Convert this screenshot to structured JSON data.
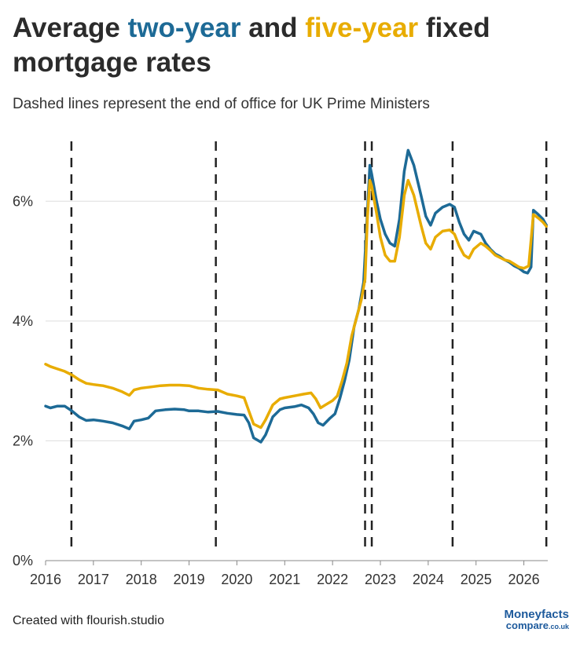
{
  "header": {
    "title_part1": "Average ",
    "title_two": "two-year",
    "title_mid": " and ",
    "title_five": "five-year",
    "title_part2": " fixed mortgage rates",
    "subtitle": "Dashed lines represent the end of office for UK Prime Ministers"
  },
  "footer": {
    "credit": "Created with flourish.studio",
    "logo_line1": "Moneyfacts",
    "logo_line2": "compare",
    "logo_suffix": ".co.uk"
  },
  "colors": {
    "two_year": "#1d6a96",
    "five_year": "#e8ac00",
    "gridline": "#dddddd",
    "dashed": "#222222"
  },
  "chart_data": {
    "type": "line",
    "title": "Average two-year and five-year fixed mortgage rates",
    "xlabel": "",
    "ylabel": "",
    "xlim": [
      2016.0,
      2026.5
    ],
    "ylim": [
      0,
      7
    ],
    "x_ticks": [
      "2016",
      "2017",
      "2018",
      "2019",
      "2020",
      "2021",
      "2022",
      "2023",
      "2024",
      "2025",
      "2026"
    ],
    "y_ticks": [
      "0%",
      "2%",
      "4%",
      "6%"
    ],
    "grid": "horizontal",
    "vlines": [
      2016.54,
      2019.56,
      2022.68,
      2022.82,
      2024.51,
      2026.47
    ],
    "series": [
      {
        "name": "two-year",
        "color": "#1d6a96",
        "points": [
          [
            2016.0,
            2.58
          ],
          [
            2016.1,
            2.55
          ],
          [
            2016.25,
            2.58
          ],
          [
            2016.4,
            2.58
          ],
          [
            2016.55,
            2.5
          ],
          [
            2016.7,
            2.4
          ],
          [
            2016.85,
            2.34
          ],
          [
            2017.0,
            2.35
          ],
          [
            2017.2,
            2.33
          ],
          [
            2017.4,
            2.3
          ],
          [
            2017.6,
            2.25
          ],
          [
            2017.75,
            2.2
          ],
          [
            2017.85,
            2.33
          ],
          [
            2018.0,
            2.35
          ],
          [
            2018.15,
            2.38
          ],
          [
            2018.3,
            2.5
          ],
          [
            2018.5,
            2.52
          ],
          [
            2018.7,
            2.53
          ],
          [
            2018.9,
            2.52
          ],
          [
            2019.0,
            2.5
          ],
          [
            2019.2,
            2.5
          ],
          [
            2019.4,
            2.48
          ],
          [
            2019.6,
            2.49
          ],
          [
            2019.8,
            2.46
          ],
          [
            2020.0,
            2.44
          ],
          [
            2020.15,
            2.43
          ],
          [
            2020.25,
            2.3
          ],
          [
            2020.35,
            2.05
          ],
          [
            2020.5,
            1.98
          ],
          [
            2020.6,
            2.1
          ],
          [
            2020.75,
            2.4
          ],
          [
            2020.9,
            2.52
          ],
          [
            2021.0,
            2.55
          ],
          [
            2021.2,
            2.57
          ],
          [
            2021.35,
            2.6
          ],
          [
            2021.5,
            2.55
          ],
          [
            2021.6,
            2.45
          ],
          [
            2021.7,
            2.3
          ],
          [
            2021.8,
            2.26
          ],
          [
            2021.95,
            2.38
          ],
          [
            2022.05,
            2.45
          ],
          [
            2022.15,
            2.7
          ],
          [
            2022.25,
            3.0
          ],
          [
            2022.35,
            3.35
          ],
          [
            2022.45,
            3.9
          ],
          [
            2022.55,
            4.2
          ],
          [
            2022.65,
            4.65
          ],
          [
            2022.72,
            5.7
          ],
          [
            2022.78,
            6.6
          ],
          [
            2022.82,
            6.45
          ],
          [
            2022.92,
            6.0
          ],
          [
            2023.0,
            5.7
          ],
          [
            2023.1,
            5.45
          ],
          [
            2023.2,
            5.3
          ],
          [
            2023.3,
            5.25
          ],
          [
            2023.4,
            5.7
          ],
          [
            2023.5,
            6.5
          ],
          [
            2023.58,
            6.85
          ],
          [
            2023.7,
            6.6
          ],
          [
            2023.85,
            6.1
          ],
          [
            2023.95,
            5.75
          ],
          [
            2024.05,
            5.6
          ],
          [
            2024.15,
            5.8
          ],
          [
            2024.3,
            5.9
          ],
          [
            2024.45,
            5.95
          ],
          [
            2024.55,
            5.9
          ],
          [
            2024.65,
            5.65
          ],
          [
            2024.75,
            5.45
          ],
          [
            2024.85,
            5.35
          ],
          [
            2024.95,
            5.5
          ],
          [
            2025.1,
            5.45
          ],
          [
            2025.2,
            5.3
          ],
          [
            2025.3,
            5.2
          ],
          [
            2025.4,
            5.12
          ],
          [
            2025.5,
            5.08
          ],
          [
            2025.6,
            5.02
          ],
          [
            2025.7,
            4.98
          ],
          [
            2025.8,
            4.92
          ],
          [
            2025.9,
            4.88
          ],
          [
            2026.0,
            4.82
          ],
          [
            2026.08,
            4.8
          ],
          [
            2026.15,
            4.9
          ],
          [
            2026.2,
            5.85
          ],
          [
            2026.3,
            5.78
          ],
          [
            2026.4,
            5.7
          ],
          [
            2026.47,
            5.6
          ]
        ]
      },
      {
        "name": "five-year",
        "color": "#e8ac00",
        "points": [
          [
            2016.0,
            3.28
          ],
          [
            2016.1,
            3.24
          ],
          [
            2016.25,
            3.2
          ],
          [
            2016.4,
            3.16
          ],
          [
            2016.55,
            3.1
          ],
          [
            2016.7,
            3.02
          ],
          [
            2016.85,
            2.96
          ],
          [
            2017.0,
            2.94
          ],
          [
            2017.2,
            2.92
          ],
          [
            2017.4,
            2.88
          ],
          [
            2017.6,
            2.82
          ],
          [
            2017.75,
            2.76
          ],
          [
            2017.85,
            2.85
          ],
          [
            2018.0,
            2.88
          ],
          [
            2018.2,
            2.9
          ],
          [
            2018.4,
            2.92
          ],
          [
            2018.6,
            2.93
          ],
          [
            2018.8,
            2.93
          ],
          [
            2019.0,
            2.92
          ],
          [
            2019.2,
            2.88
          ],
          [
            2019.4,
            2.86
          ],
          [
            2019.6,
            2.85
          ],
          [
            2019.8,
            2.78
          ],
          [
            2020.0,
            2.75
          ],
          [
            2020.15,
            2.72
          ],
          [
            2020.25,
            2.5
          ],
          [
            2020.35,
            2.28
          ],
          [
            2020.5,
            2.22
          ],
          [
            2020.6,
            2.35
          ],
          [
            2020.75,
            2.6
          ],
          [
            2020.9,
            2.7
          ],
          [
            2021.0,
            2.72
          ],
          [
            2021.2,
            2.75
          ],
          [
            2021.4,
            2.78
          ],
          [
            2021.55,
            2.8
          ],
          [
            2021.65,
            2.7
          ],
          [
            2021.75,
            2.55
          ],
          [
            2021.85,
            2.6
          ],
          [
            2022.0,
            2.67
          ],
          [
            2022.1,
            2.75
          ],
          [
            2022.2,
            3.0
          ],
          [
            2022.3,
            3.3
          ],
          [
            2022.4,
            3.75
          ],
          [
            2022.5,
            4.05
          ],
          [
            2022.6,
            4.35
          ],
          [
            2022.68,
            4.7
          ],
          [
            2022.73,
            5.75
          ],
          [
            2022.78,
            6.35
          ],
          [
            2022.82,
            6.25
          ],
          [
            2022.92,
            5.8
          ],
          [
            2023.0,
            5.4
          ],
          [
            2023.1,
            5.1
          ],
          [
            2023.2,
            5.0
          ],
          [
            2023.3,
            5.0
          ],
          [
            2023.4,
            5.4
          ],
          [
            2023.5,
            6.1
          ],
          [
            2023.58,
            6.35
          ],
          [
            2023.7,
            6.1
          ],
          [
            2023.85,
            5.6
          ],
          [
            2023.95,
            5.3
          ],
          [
            2024.05,
            5.2
          ],
          [
            2024.15,
            5.4
          ],
          [
            2024.3,
            5.5
          ],
          [
            2024.45,
            5.52
          ],
          [
            2024.55,
            5.45
          ],
          [
            2024.65,
            5.25
          ],
          [
            2024.75,
            5.1
          ],
          [
            2024.85,
            5.05
          ],
          [
            2024.95,
            5.2
          ],
          [
            2025.1,
            5.3
          ],
          [
            2025.2,
            5.25
          ],
          [
            2025.3,
            5.18
          ],
          [
            2025.4,
            5.1
          ],
          [
            2025.5,
            5.06
          ],
          [
            2025.6,
            5.02
          ],
          [
            2025.7,
            5.0
          ],
          [
            2025.8,
            4.95
          ],
          [
            2025.9,
            4.9
          ],
          [
            2026.0,
            4.88
          ],
          [
            2026.1,
            4.92
          ],
          [
            2026.2,
            5.78
          ],
          [
            2026.3,
            5.72
          ],
          [
            2026.4,
            5.65
          ],
          [
            2026.47,
            5.58
          ]
        ]
      }
    ]
  }
}
